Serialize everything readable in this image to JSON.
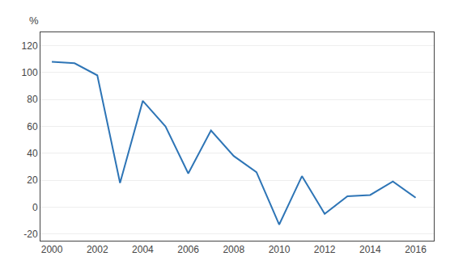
{
  "chart_data": {
    "type": "line",
    "x": [
      2000,
      2001,
      2002,
      2003,
      2004,
      2005,
      2006,
      2007,
      2008,
      2009,
      2010,
      2011,
      2012,
      2013,
      2014,
      2015,
      2016
    ],
    "values": [
      108,
      107,
      98,
      18,
      79,
      60,
      25,
      57,
      38,
      26,
      -13,
      23,
      -5,
      8,
      9,
      19,
      7
    ],
    "color": "#2E75B6",
    "ylabel": "%",
    "xlim": [
      1999.5,
      2016.8
    ],
    "xticks": [
      2000,
      2002,
      2004,
      2006,
      2008,
      2010,
      2012,
      2014,
      2016
    ],
    "ylim": [
      -25,
      130
    ],
    "yticks": [
      -20,
      0,
      20,
      40,
      60,
      80,
      100,
      120
    ],
    "grid": true
  }
}
